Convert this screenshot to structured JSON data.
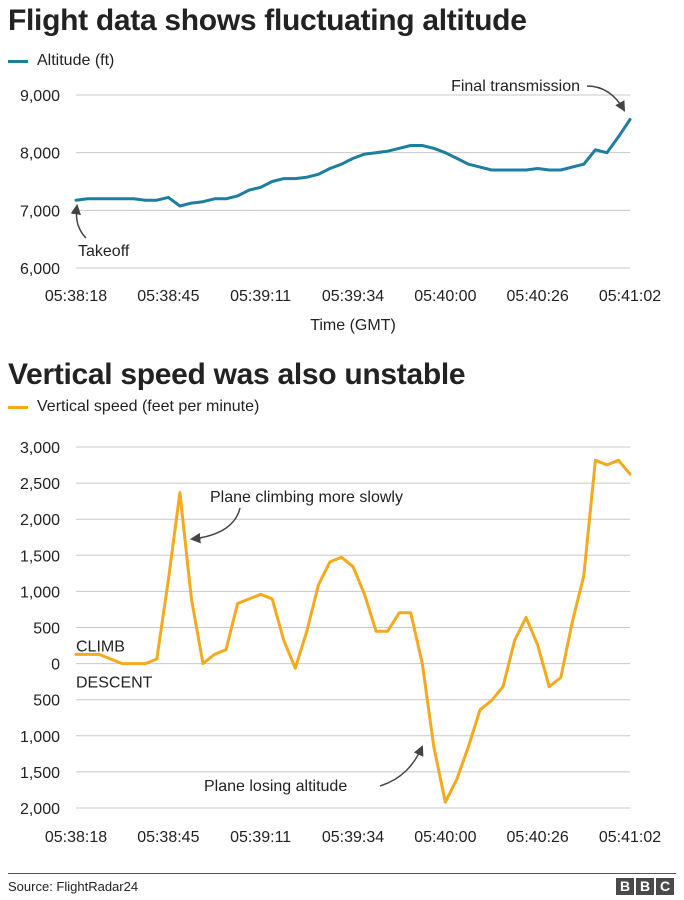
{
  "colors": {
    "altitude": "#1d7ea0",
    "vertical_speed": "#f5a91e",
    "grid": "#c8c8c8",
    "descent_band": "#ebebeb",
    "annotation_arrow": "#444444"
  },
  "footer": {
    "source": "Source: FlightRadar24",
    "logo_letters": [
      "B",
      "B",
      "C"
    ]
  },
  "chart_data": [
    {
      "type": "line",
      "title": "Flight data shows fluctuating altitude",
      "xlabel": "Time (GMT)",
      "ylabel": "",
      "x_tick_labels": [
        "05:38:18",
        "05:38:45",
        "05:39:11",
        "05:39:34",
        "05:40:00",
        "05:40:26",
        "05:41:02"
      ],
      "ylim": [
        6000,
        9000
      ],
      "y_ticks": [
        6000,
        7000,
        8000,
        9000
      ],
      "y_tick_labels": [
        "6,000",
        "7,000",
        "8,000",
        "9,000"
      ],
      "grid": true,
      "legend": "top-left",
      "series": [
        {
          "name": "Altitude (ft)",
          "values": [
            7175,
            7200,
            7200,
            7200,
            7200,
            7200,
            7175,
            7175,
            7225,
            7075,
            7125,
            7150,
            7200,
            7200,
            7250,
            7350,
            7400,
            7500,
            7550,
            7550,
            7575,
            7625,
            7725,
            7800,
            7900,
            7975,
            8000,
            8025,
            8075,
            8125,
            8125,
            8075,
            8000,
            7900,
            7800,
            7750,
            7700,
            7700,
            7700,
            7700,
            7725,
            7700,
            7700,
            7750,
            7800,
            8050,
            8000,
            8275,
            8575
          ]
        }
      ],
      "annotations": [
        {
          "text": "Takeoff"
        },
        {
          "text": "Final transmission"
        }
      ]
    },
    {
      "type": "line",
      "title": "Vertical speed was also unstable",
      "xlabel": "",
      "ylabel": "",
      "x_tick_labels": [
        "05:38:18",
        "05:38:45",
        "05:39:11",
        "05:39:34",
        "05:40:00",
        "05:40:26",
        "05:41:02"
      ],
      "ylim": [
        -2000,
        3000
      ],
      "y_ticks": [
        -2000,
        -1500,
        -1000,
        -500,
        0,
        500,
        1000,
        1500,
        2000,
        2500,
        3000
      ],
      "y_tick_labels": [
        "2,000",
        "1,500",
        "1,000",
        "500",
        "0",
        "500",
        "1,000",
        "1,500",
        "2,000",
        "2,500",
        "3,000"
      ],
      "grid": true,
      "legend": "top-left",
      "series": [
        {
          "name": "Vertical speed (feet per minute)",
          "values": [
            128,
            128,
            128,
            64,
            0,
            0,
            0,
            64,
            1152,
            2368,
            896,
            0,
            128,
            192,
            832,
            896,
            960,
            896,
            320,
            -64,
            448,
            1088,
            1408,
            1472,
            1344,
            960,
            448,
            448,
            704,
            704,
            0,
            -1152,
            -1920,
            -1600,
            -1152,
            -640,
            -512,
            -320,
            320,
            640,
            256,
            -320,
            -192,
            576,
            1216,
            2816,
            2752,
            2816,
            2624
          ]
        }
      ],
      "region_labels": [
        "CLIMB",
        "DESCENT"
      ],
      "annotations": [
        {
          "text": "Plane climbing more slowly"
        },
        {
          "text": "Plane losing altitude"
        }
      ]
    }
  ]
}
